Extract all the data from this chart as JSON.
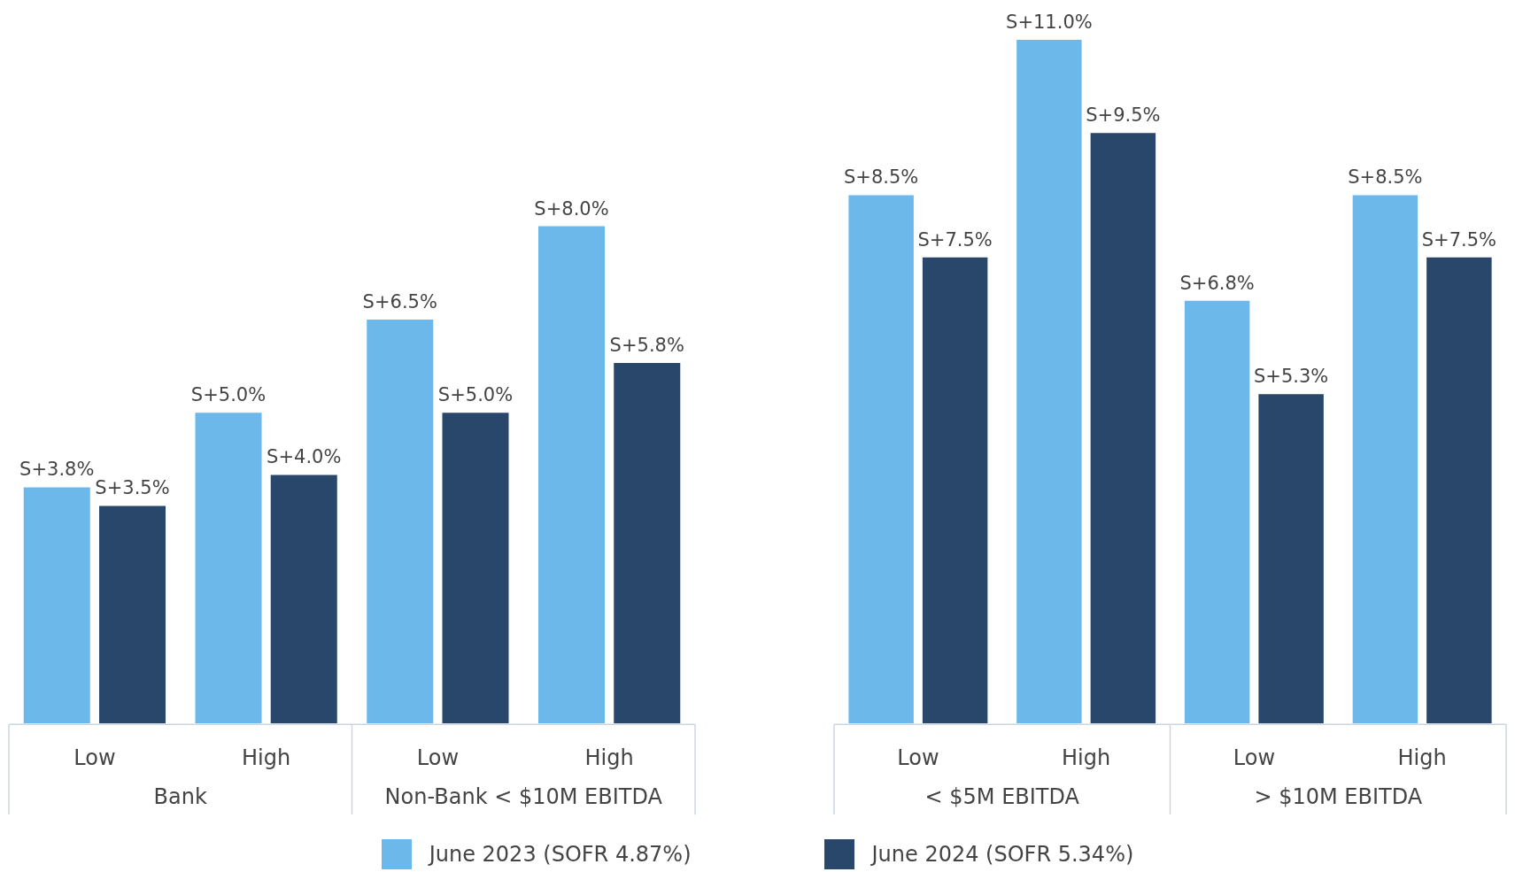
{
  "chart_data": [
    {
      "type": "bar",
      "categories": [
        "Low",
        "High",
        "Low",
        "High"
      ],
      "annotations": [
        "Bank",
        "Non-Bank < $10M EBITDA"
      ],
      "legend": "bottom",
      "series": [
        {
          "name": "June 2023 (SOFR 4.87%)",
          "color": "#6cb8ea",
          "values": [
            3.8,
            5.0,
            6.5,
            8.0
          ],
          "value_labels": [
            "S+3.8%",
            "S+5.0%",
            "S+6.5%",
            "S+8.0%"
          ]
        },
        {
          "name": "June 2024 (SOFR 5.34%)",
          "color": "#29466b",
          "values": [
            3.5,
            4.0,
            5.0,
            5.8
          ],
          "value_labels": [
            "S+3.5%",
            "S+4.0%",
            "S+5.0%",
            "S+5.8%"
          ]
        }
      ]
    },
    {
      "type": "bar",
      "categories": [
        "Low",
        "High",
        "Low",
        "High"
      ],
      "annotations": [
        "< $5M EBITDA",
        "> $10M EBITDA"
      ],
      "series": [
        {
          "color": "#6cb8ea",
          "values": [
            8.5,
            11.0,
            6.8,
            8.5
          ],
          "value_labels": [
            "S+8.5%",
            "S+11.0%",
            "S+6.8%",
            "S+8.5%"
          ]
        },
        {
          "color": "#29466b",
          "values": [
            7.5,
            9.5,
            5.3,
            7.5
          ],
          "value_labels": [
            "S+7.5%",
            "S+9.5%",
            "S+5.3%",
            "S+7.5%"
          ]
        }
      ]
    }
  ]
}
